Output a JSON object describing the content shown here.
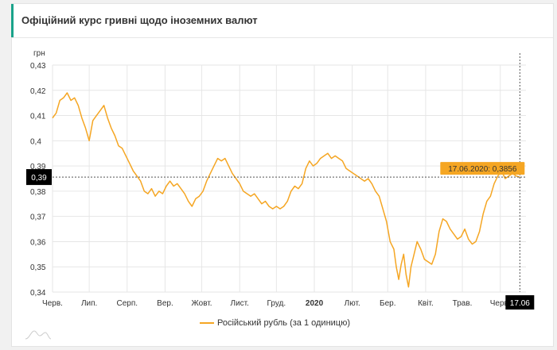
{
  "header": {
    "title": "Офіційний курс гривні щодо іноземних валют"
  },
  "colors": {
    "line": "#f5a623",
    "accent": "#1aa38a",
    "grid": "#e6e6e6",
    "marker": "#000000"
  },
  "chart_data": {
    "type": "line",
    "ylabel": "грн",
    "ylim": [
      0.34,
      0.43
    ],
    "yticks": [
      {
        "value": 0.43,
        "label": "0,43"
      },
      {
        "value": 0.42,
        "label": "0,42"
      },
      {
        "value": 0.41,
        "label": "0,41"
      },
      {
        "value": 0.4,
        "label": "0,4"
      },
      {
        "value": 0.39,
        "label": "0,39"
      },
      {
        "value": 0.38,
        "label": "0,38"
      },
      {
        "value": 0.37,
        "label": "0,37"
      },
      {
        "value": 0.36,
        "label": "0,36"
      },
      {
        "value": 0.35,
        "label": "0,35"
      },
      {
        "value": 0.34,
        "label": "0,34"
      }
    ],
    "xlim": [
      "2019-06-01",
      "2020-06-22"
    ],
    "xticks": [
      {
        "date": "2019-06-01",
        "label": "Черв.",
        "bold": false
      },
      {
        "date": "2019-07-01",
        "label": "Лип.",
        "bold": false
      },
      {
        "date": "2019-08-01",
        "label": "Серп.",
        "bold": false
      },
      {
        "date": "2019-09-01",
        "label": "Вер.",
        "bold": false
      },
      {
        "date": "2019-10-01",
        "label": "Жовт.",
        "bold": false
      },
      {
        "date": "2019-11-01",
        "label": "Лист.",
        "bold": false
      },
      {
        "date": "2019-12-01",
        "label": "Груд.",
        "bold": false
      },
      {
        "date": "2020-01-01",
        "label": "2020",
        "bold": true
      },
      {
        "date": "2020-02-01",
        "label": "Лют.",
        "bold": false
      },
      {
        "date": "2020-03-01",
        "label": "Бер.",
        "bold": false
      },
      {
        "date": "2020-04-01",
        "label": "Квіт.",
        "bold": false
      },
      {
        "date": "2020-05-01",
        "label": "Трав.",
        "bold": false
      },
      {
        "date": "2020-06-01",
        "label": "Черв.",
        "bold": false
      }
    ],
    "series": [
      {
        "name": "Російський рубль (за 1 одиницю)",
        "points": [
          [
            "2019-06-01",
            0.409
          ],
          [
            "2019-06-04",
            0.411
          ],
          [
            "2019-06-07",
            0.416
          ],
          [
            "2019-06-10",
            0.417
          ],
          [
            "2019-06-13",
            0.419
          ],
          [
            "2019-06-16",
            0.416
          ],
          [
            "2019-06-19",
            0.417
          ],
          [
            "2019-06-22",
            0.414
          ],
          [
            "2019-06-25",
            0.409
          ],
          [
            "2019-06-28",
            0.405
          ],
          [
            "2019-07-01",
            0.4
          ],
          [
            "2019-07-04",
            0.408
          ],
          [
            "2019-07-07",
            0.41
          ],
          [
            "2019-07-10",
            0.412
          ],
          [
            "2019-07-13",
            0.414
          ],
          [
            "2019-07-16",
            0.409
          ],
          [
            "2019-07-19",
            0.405
          ],
          [
            "2019-07-22",
            0.402
          ],
          [
            "2019-07-25",
            0.398
          ],
          [
            "2019-07-28",
            0.397
          ],
          [
            "2019-07-31",
            0.394
          ],
          [
            "2019-08-03",
            0.391
          ],
          [
            "2019-08-06",
            0.388
          ],
          [
            "2019-08-09",
            0.386
          ],
          [
            "2019-08-12",
            0.384
          ],
          [
            "2019-08-15",
            0.38
          ],
          [
            "2019-08-18",
            0.379
          ],
          [
            "2019-08-21",
            0.381
          ],
          [
            "2019-08-24",
            0.378
          ],
          [
            "2019-08-27",
            0.38
          ],
          [
            "2019-08-30",
            0.379
          ],
          [
            "2019-09-02",
            0.382
          ],
          [
            "2019-09-05",
            0.384
          ],
          [
            "2019-09-08",
            0.382
          ],
          [
            "2019-09-11",
            0.383
          ],
          [
            "2019-09-14",
            0.381
          ],
          [
            "2019-09-17",
            0.379
          ],
          [
            "2019-09-20",
            0.376
          ],
          [
            "2019-09-23",
            0.374
          ],
          [
            "2019-09-26",
            0.377
          ],
          [
            "2019-09-29",
            0.378
          ],
          [
            "2019-10-02",
            0.38
          ],
          [
            "2019-10-05",
            0.384
          ],
          [
            "2019-10-08",
            0.387
          ],
          [
            "2019-10-11",
            0.39
          ],
          [
            "2019-10-14",
            0.393
          ],
          [
            "2019-10-17",
            0.392
          ],
          [
            "2019-10-20",
            0.393
          ],
          [
            "2019-10-23",
            0.39
          ],
          [
            "2019-10-26",
            0.387
          ],
          [
            "2019-10-29",
            0.385
          ],
          [
            "2019-11-01",
            0.383
          ],
          [
            "2019-11-04",
            0.38
          ],
          [
            "2019-11-07",
            0.379
          ],
          [
            "2019-11-10",
            0.378
          ],
          [
            "2019-11-13",
            0.379
          ],
          [
            "2019-11-16",
            0.377
          ],
          [
            "2019-11-19",
            0.375
          ],
          [
            "2019-11-22",
            0.376
          ],
          [
            "2019-11-25",
            0.374
          ],
          [
            "2019-11-28",
            0.373
          ],
          [
            "2019-12-01",
            0.374
          ],
          [
            "2019-12-04",
            0.373
          ],
          [
            "2019-12-07",
            0.374
          ],
          [
            "2019-12-10",
            0.376
          ],
          [
            "2019-12-13",
            0.38
          ],
          [
            "2019-12-16",
            0.382
          ],
          [
            "2019-12-19",
            0.381
          ],
          [
            "2019-12-22",
            0.383
          ],
          [
            "2019-12-25",
            0.389
          ],
          [
            "2019-12-28",
            0.392
          ],
          [
            "2019-12-31",
            0.39
          ],
          [
            "2020-01-03",
            0.391
          ],
          [
            "2020-01-06",
            0.393
          ],
          [
            "2020-01-09",
            0.394
          ],
          [
            "2020-01-12",
            0.395
          ],
          [
            "2020-01-15",
            0.393
          ],
          [
            "2020-01-18",
            0.394
          ],
          [
            "2020-01-21",
            0.393
          ],
          [
            "2020-01-24",
            0.392
          ],
          [
            "2020-01-27",
            0.389
          ],
          [
            "2020-01-30",
            0.388
          ],
          [
            "2020-02-02",
            0.387
          ],
          [
            "2020-02-05",
            0.386
          ],
          [
            "2020-02-08",
            0.385
          ],
          [
            "2020-02-11",
            0.384
          ],
          [
            "2020-02-14",
            0.385
          ],
          [
            "2020-02-17",
            0.383
          ],
          [
            "2020-02-20",
            0.38
          ],
          [
            "2020-02-23",
            0.378
          ],
          [
            "2020-02-26",
            0.373
          ],
          [
            "2020-02-29",
            0.368
          ],
          [
            "2020-03-03",
            0.36
          ],
          [
            "2020-03-06",
            0.357
          ],
          [
            "2020-03-08",
            0.35
          ],
          [
            "2020-03-10",
            0.345
          ],
          [
            "2020-03-12",
            0.351
          ],
          [
            "2020-03-14",
            0.355
          ],
          [
            "2020-03-16",
            0.347
          ],
          [
            "2020-03-18",
            0.342
          ],
          [
            "2020-03-20",
            0.35
          ],
          [
            "2020-03-22",
            0.354
          ],
          [
            "2020-03-25",
            0.36
          ],
          [
            "2020-03-28",
            0.357
          ],
          [
            "2020-03-31",
            0.353
          ],
          [
            "2020-04-03",
            0.352
          ],
          [
            "2020-04-06",
            0.351
          ],
          [
            "2020-04-09",
            0.355
          ],
          [
            "2020-04-12",
            0.364
          ],
          [
            "2020-04-15",
            0.369
          ],
          [
            "2020-04-18",
            0.368
          ],
          [
            "2020-04-21",
            0.365
          ],
          [
            "2020-04-24",
            0.363
          ],
          [
            "2020-04-27",
            0.361
          ],
          [
            "2020-04-30",
            0.362
          ],
          [
            "2020-05-03",
            0.365
          ],
          [
            "2020-05-06",
            0.361
          ],
          [
            "2020-05-09",
            0.359
          ],
          [
            "2020-05-12",
            0.36
          ],
          [
            "2020-05-15",
            0.364
          ],
          [
            "2020-05-18",
            0.371
          ],
          [
            "2020-05-21",
            0.376
          ],
          [
            "2020-05-24",
            0.378
          ],
          [
            "2020-05-27",
            0.383
          ],
          [
            "2020-05-30",
            0.386
          ],
          [
            "2020-06-02",
            0.388
          ],
          [
            "2020-06-05",
            0.385
          ],
          [
            "2020-06-08",
            0.386
          ],
          [
            "2020-06-11",
            0.387
          ],
          [
            "2020-06-14",
            0.386
          ],
          [
            "2020-06-17",
            0.3856
          ]
        ]
      }
    ],
    "crosshair": {
      "date": "2020-06-17",
      "value": 0.3856,
      "tooltip": "17.06.2020: 0,3856",
      "y_badge": "0,39",
      "x_badge": "17.06"
    },
    "grid": true,
    "legend_position": "bottom-center"
  },
  "legend": {
    "label": "Російський рубль (за 1 одиницю)"
  }
}
